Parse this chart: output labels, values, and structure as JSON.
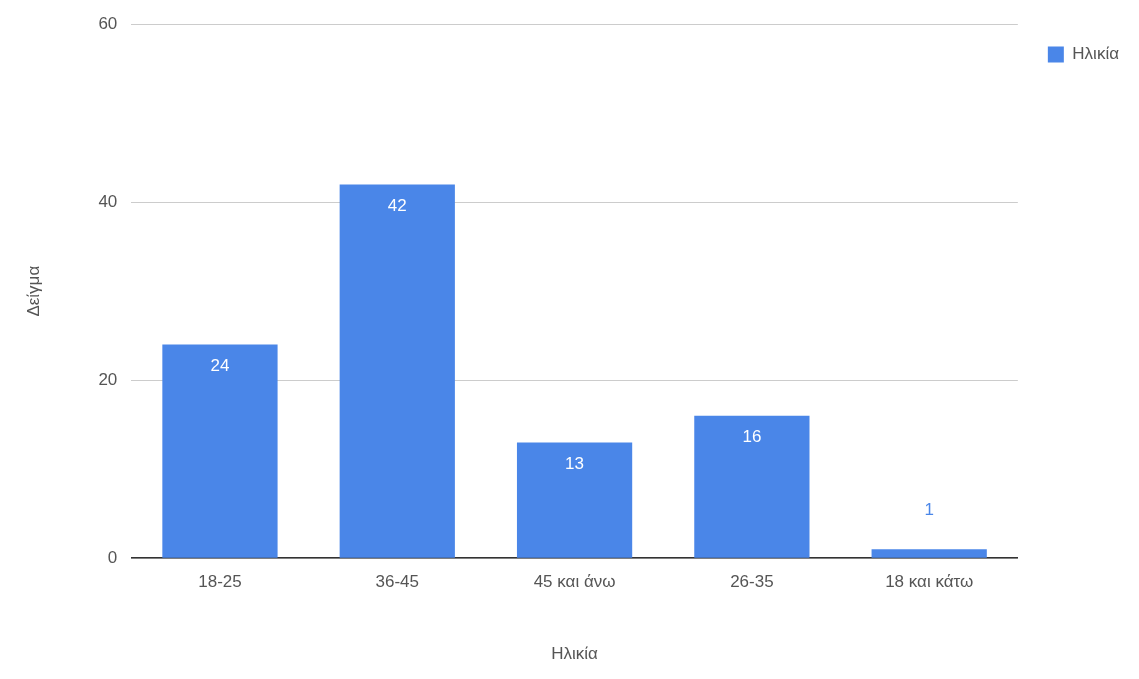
{
  "chart_data": {
    "type": "bar",
    "xlabel": "Ηλικία",
    "ylabel": "Δείγμα",
    "categories": [
      "18-25",
      "36-45",
      "45 και άνω",
      "26-35",
      "18 και κάτω"
    ],
    "series": [
      {
        "name": "Ηλικία",
        "color": "#4a86e8",
        "values": [
          24,
          42,
          13,
          16,
          1
        ]
      }
    ],
    "ylim": [
      0,
      60
    ],
    "yticks": [
      0,
      20,
      40,
      60
    ],
    "grid": "y",
    "legend": "top right",
    "data_labels": true
  }
}
